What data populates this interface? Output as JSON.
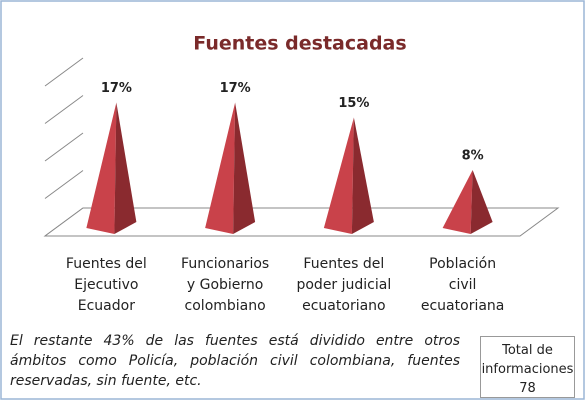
{
  "chart_data": {
    "type": "pyramid",
    "title": "Fuentes destacadas",
    "categories": [
      "Fuentes del\nEjecutivo\nEcuador",
      "Funcionarios\ny Gobierno\ncolombiano",
      "Fuentes del\npoder judicial\necuatoriano",
      "Población\ncivil\necuatoriana"
    ],
    "values": [
      17,
      17,
      15,
      8
    ],
    "value_labels": [
      "17%",
      "17%",
      "15%",
      "8%"
    ],
    "color": "#c9424a",
    "ylim": [
      0,
      20
    ],
    "yticks": [
      0,
      5,
      10,
      15,
      20
    ],
    "grid": true,
    "note": "El restante 43% de las fuentes está dividido entre otros ámbitos como Policía, población civil colombiana, fuentes reservadas, sin fuente, etc.",
    "total": {
      "label": "Total de informaciones",
      "value": 78
    }
  }
}
